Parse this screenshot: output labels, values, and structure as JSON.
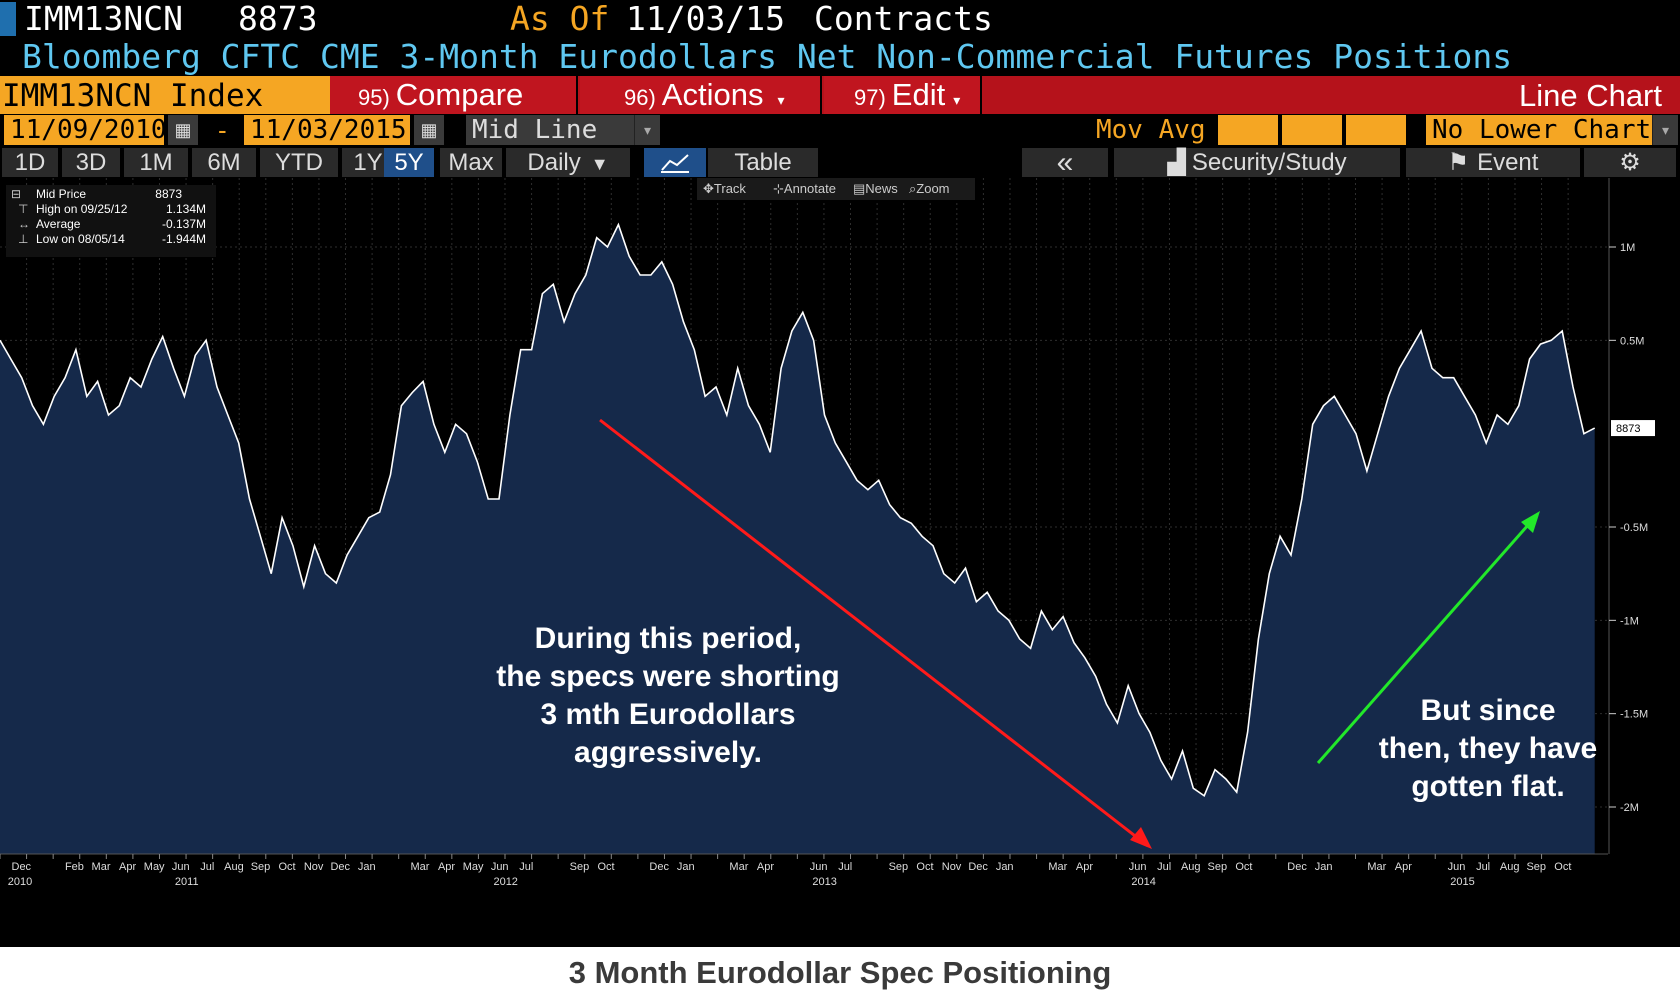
{
  "header": {
    "ticker": "IMM13NCN",
    "last_value": "8873",
    "as_of_label": "As Of",
    "as_of_date": "11/03/15",
    "units": "Contracts",
    "full_title": "Bloomberg CFTC CME 3-Month Eurodollars Net Non-Commercial Futures Positions"
  },
  "toolbar": {
    "security": "IMM13NCN Index",
    "compare_num": "95)",
    "compare_label": "Compare",
    "actions_num": "96)",
    "actions_label": "Actions",
    "edit_num": "97)",
    "edit_label": "Edit",
    "chart_type": "Line Chart"
  },
  "date_range": {
    "start": "11/09/2010",
    "separator": "-",
    "end": "11/03/2015",
    "line_mode": "Mid Line",
    "mov_avg_label": "Mov Avg",
    "lower_chart": "No Lower Chart"
  },
  "periods": {
    "items": [
      "1D",
      "3D",
      "1M",
      "6M",
      "YTD",
      "1Y",
      "5Y",
      "Max"
    ],
    "active": "5Y",
    "frequency": "Daily",
    "table_label": "Table",
    "back_label": "«",
    "security_study_label": "Security/Study",
    "event_label": "Event"
  },
  "tools": {
    "track": "Track",
    "annotate": "Annotate",
    "news": "News",
    "zoom": "Zoom"
  },
  "legend": {
    "mid_label": "Mid Price",
    "mid_value": "8873",
    "high_label": "High on 09/25/12",
    "high_value": "1.134M",
    "avg_label": "Average",
    "avg_value": "-0.137M",
    "low_label": "Low on 08/05/14",
    "low_value": "-1.944M"
  },
  "annotations": {
    "left_lines": [
      "During this period,",
      "the specs were shorting",
      "3 mth Eurodollars",
      "aggressively."
    ],
    "right_lines": [
      "But since",
      "then, they have",
      "gotten flat."
    ]
  },
  "caption": "3 Month Eurodollar Spec Positioning",
  "chart_data": {
    "type": "area",
    "ylim": [
      -2.2,
      1.35
    ],
    "y_units": "M contracts",
    "y_ticks": [
      1,
      0.5,
      -0.5,
      -1,
      -1.5,
      -2
    ],
    "y_tick_labels": [
      "1M",
      "0.5M",
      "-0.5M",
      "-1M",
      "-1.5M",
      "-2M"
    ],
    "last_label": "8873",
    "grid": true,
    "colors": {
      "line": "#ffffff",
      "fill": "#15294a",
      "grid": "#2e2e2e",
      "down_arrow": "#ff1a1a",
      "up_arrow": "#22e82a"
    },
    "month_labels": [
      "Dec",
      "Jan",
      "Feb",
      "Mar",
      "Apr",
      "May",
      "Jun",
      "Jul",
      "Aug",
      "Sep",
      "Oct",
      "Nov",
      "Dec",
      "Jan",
      "Feb",
      "Mar",
      "Apr",
      "May",
      "Jun",
      "Jul",
      "Aug",
      "Sep",
      "Oct",
      "Nov",
      "Dec",
      "Jan",
      "Feb",
      "Mar",
      "Apr",
      "May",
      "Jun",
      "Jul",
      "Aug",
      "Sep",
      "Oct",
      "Nov",
      "Dec",
      "Jan",
      "Feb",
      "Mar",
      "Apr",
      "May",
      "Jun",
      "Jul",
      "Aug",
      "Sep",
      "Oct",
      "Nov",
      "Dec",
      "Jan",
      "Feb",
      "Mar",
      "Apr",
      "May",
      "Jun",
      "Jul",
      "Aug",
      "Sep",
      "Oct"
    ],
    "month_label_show": [
      true,
      false,
      true,
      true,
      true,
      true,
      true,
      true,
      true,
      true,
      true,
      true,
      true,
      true,
      false,
      true,
      true,
      true,
      true,
      true,
      false,
      true,
      true,
      false,
      true,
      true,
      false,
      true,
      true,
      false,
      true,
      true,
      false,
      true,
      true,
      true,
      true,
      true,
      false,
      true,
      true,
      false,
      true,
      true,
      true,
      true,
      true,
      false,
      true,
      true,
      false,
      true,
      true,
      false,
      true,
      true,
      true,
      true,
      true
    ],
    "year_labels": [
      "2010",
      "2011",
      "2012",
      "2013",
      "2014",
      "2015"
    ],
    "year_positions": [
      0.3,
      6.5,
      18.5,
      30.5,
      42.5,
      54.5
    ],
    "x_max": 60.5,
    "values": [
      0.5,
      0.4,
      0.3,
      0.15,
      0.05,
      0.2,
      0.3,
      0.45,
      0.2,
      0.28,
      0.1,
      0.15,
      0.3,
      0.25,
      0.4,
      0.52,
      0.35,
      0.2,
      0.42,
      0.5,
      0.25,
      0.1,
      -0.05,
      -0.35,
      -0.55,
      -0.75,
      -0.45,
      -0.6,
      -0.82,
      -0.6,
      -0.75,
      -0.8,
      -0.65,
      -0.55,
      -0.45,
      -0.42,
      -0.22,
      0.15,
      0.22,
      0.28,
      0.05,
      -0.1,
      0.05,
      0.0,
      -0.15,
      -0.35,
      -0.35,
      0.1,
      0.45,
      0.45,
      0.75,
      0.8,
      0.6,
      0.75,
      0.85,
      1.05,
      1.0,
      1.12,
      0.95,
      0.85,
      0.85,
      0.92,
      0.8,
      0.6,
      0.45,
      0.2,
      0.25,
      0.1,
      0.35,
      0.15,
      0.05,
      -0.1,
      0.35,
      0.55,
      0.65,
      0.5,
      0.1,
      -0.05,
      -0.15,
      -0.25,
      -0.3,
      -0.25,
      -0.38,
      -0.45,
      -0.48,
      -0.55,
      -0.6,
      -0.75,
      -0.8,
      -0.72,
      -0.9,
      -0.85,
      -0.95,
      -1.0,
      -1.1,
      -1.15,
      -0.95,
      -1.05,
      -0.98,
      -1.12,
      -1.2,
      -1.3,
      -1.45,
      -1.55,
      -1.35,
      -1.5,
      -1.6,
      -1.75,
      -1.85,
      -1.7,
      -1.9,
      -1.94,
      -1.8,
      -1.85,
      -1.92,
      -1.6,
      -1.1,
      -0.75,
      -0.55,
      -0.65,
      -0.35,
      0.05,
      0.15,
      0.2,
      0.1,
      0.0,
      -0.2,
      0.0,
      0.2,
      0.35,
      0.45,
      0.55,
      0.35,
      0.3,
      0.3,
      0.2,
      0.1,
      -0.05,
      0.1,
      0.05,
      0.15,
      0.4,
      0.48,
      0.5,
      0.55,
      0.25,
      0.0,
      0.03
    ]
  }
}
